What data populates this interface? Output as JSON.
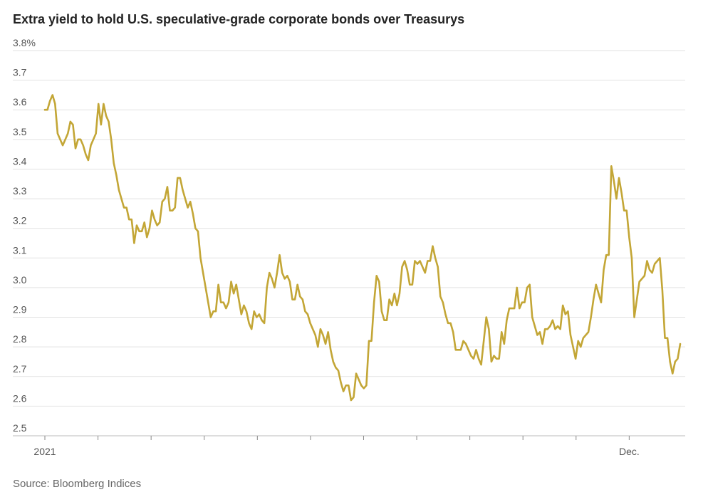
{
  "chart_data": {
    "type": "line",
    "title": "Extra yield to hold U.S. speculative-grade corporate bonds over Treasurys",
    "source": "Source: Bloomberg Indices",
    "color": "#c3a636",
    "grid": true,
    "ylim": [
      2.5,
      3.8
    ],
    "yticks": [
      2.5,
      2.6,
      2.7,
      2.8,
      2.9,
      {
        "value": 3,
        "label": "3.0"
      },
      3.1,
      3.2,
      3.3,
      3.4,
      3.5,
      3.6,
      3.7,
      {
        "value": 3.8,
        "label": "3.8%"
      }
    ],
    "categories": [
      "2021",
      null,
      null,
      null,
      null,
      null,
      null,
      null,
      null,
      null,
      null,
      null,
      null,
      null,
      null,
      null,
      null,
      null,
      null,
      null,
      null,
      null,
      null,
      null,
      null,
      null,
      null,
      null,
      null,
      null,
      null,
      null,
      null,
      null,
      null,
      null,
      null,
      null,
      null,
      null,
      null,
      null,
      null,
      null,
      null,
      null,
      null,
      null,
      null,
      null,
      null,
      null,
      null,
      null,
      null,
      null,
      null,
      null,
      null,
      null,
      null,
      null,
      null,
      null,
      null,
      null,
      null,
      null,
      null,
      null,
      null,
      null,
      null,
      null,
      null,
      null,
      null,
      null,
      null,
      null,
      null,
      null,
      null,
      null,
      null,
      null,
      null,
      null,
      null,
      null,
      null,
      null,
      null,
      null,
      null,
      null,
      null,
      null,
      null,
      null,
      null,
      null,
      null,
      null,
      null,
      null,
      null,
      null,
      null,
      null,
      null,
      null,
      null,
      null,
      null,
      null,
      null,
      null,
      null,
      null,
      null,
      null,
      null,
      null,
      null,
      null,
      null,
      null,
      null,
      null,
      null,
      null,
      null,
      null,
      null,
      null,
      null,
      null,
      null,
      null,
      null,
      null,
      null,
      null,
      null,
      null,
      null,
      null,
      null,
      null,
      null,
      null,
      null,
      null,
      null,
      null,
      null,
      null,
      null,
      null,
      null,
      null,
      null,
      null,
      null,
      null,
      null,
      null,
      null,
      null,
      null,
      null,
      null,
      null,
      null,
      null,
      null,
      null,
      null,
      null,
      null,
      null,
      null,
      null,
      null,
      null,
      null,
      null,
      null,
      null,
      null,
      null,
      null,
      null,
      null,
      null,
      null,
      null,
      null,
      null,
      null,
      null,
      null,
      null,
      null,
      null,
      null,
      null,
      null,
      null,
      null,
      null,
      null,
      null,
      null,
      null,
      null,
      null,
      null,
      null,
      null,
      null,
      null,
      null,
      null,
      null,
      null,
      null,
      null,
      "Dec.",
      null,
      null,
      null,
      null,
      null,
      null,
      null,
      null,
      null,
      null,
      null,
      null,
      null,
      null,
      null,
      null,
      null,
      null,
      null,
      null
    ],
    "values": [
      3.6,
      3.6,
      3.63,
      3.65,
      3.62,
      3.52,
      3.5,
      3.48,
      3.5,
      3.52,
      3.56,
      3.55,
      3.47,
      3.5,
      3.5,
      3.48,
      3.45,
      3.43,
      3.48,
      3.5,
      3.52,
      3.62,
      3.55,
      3.62,
      3.58,
      3.56,
      3.5,
      3.42,
      3.38,
      3.33,
      3.3,
      3.27,
      3.27,
      3.23,
      3.23,
      3.15,
      3.21,
      3.19,
      3.19,
      3.22,
      3.17,
      3.2,
      3.26,
      3.23,
      3.21,
      3.22,
      3.29,
      3.3,
      3.34,
      3.26,
      3.26,
      3.27,
      3.37,
      3.37,
      3.33,
      3.3,
      3.27,
      3.29,
      3.25,
      3.2,
      3.19,
      3.1,
      3.05,
      3.0,
      2.95,
      2.9,
      2.92,
      2.92,
      3.01,
      2.95,
      2.95,
      2.93,
      2.95,
      3.02,
      2.98,
      3.01,
      2.96,
      2.91,
      2.94,
      2.92,
      2.88,
      2.86,
      2.92,
      2.9,
      2.91,
      2.89,
      2.88,
      3.0,
      3.05,
      3.03,
      3.0,
      3.05,
      3.11,
      3.05,
      3.03,
      3.04,
      3.02,
      2.96,
      2.96,
      3.01,
      2.97,
      2.96,
      2.92,
      2.91,
      2.88,
      2.86,
      2.84,
      2.8,
      2.86,
      2.84,
      2.81,
      2.85,
      2.79,
      2.75,
      2.73,
      2.72,
      2.68,
      2.65,
      2.67,
      2.67,
      2.62,
      2.63,
      2.71,
      2.69,
      2.67,
      2.66,
      2.67,
      2.82,
      2.82,
      2.95,
      3.04,
      3.02,
      2.92,
      2.89,
      2.89,
      2.96,
      2.94,
      2.98,
      2.94,
      2.98,
      3.07,
      3.09,
      3.06,
      3.01,
      3.01,
      3.09,
      3.08,
      3.09,
      3.07,
      3.05,
      3.09,
      3.09,
      3.14,
      3.1,
      3.07,
      2.97,
      2.95,
      2.91,
      2.88,
      2.88,
      2.85,
      2.79,
      2.79,
      2.79,
      2.82,
      2.81,
      2.79,
      2.77,
      2.76,
      2.79,
      2.76,
      2.74,
      2.82,
      2.9,
      2.86,
      2.75,
      2.77,
      2.76,
      2.76,
      2.85,
      2.81,
      2.89,
      2.93,
      2.93,
      2.93,
      3.0,
      2.93,
      2.95,
      2.95,
      3.0,
      3.01,
      2.9,
      2.87,
      2.84,
      2.85,
      2.81,
      2.86,
      2.86,
      2.87,
      2.89,
      2.86,
      2.87,
      2.86,
      2.94,
      2.91,
      2.92,
      2.84,
      2.8,
      2.76,
      2.82,
      2.8,
      2.83,
      2.84,
      2.85,
      2.9,
      2.96,
      3.01,
      2.98,
      2.95,
      3.06,
      3.11,
      3.11,
      3.41,
      3.36,
      3.3,
      3.37,
      3.32,
      3.26,
      3.26,
      3.17,
      3.1,
      2.9,
      2.96,
      3.02,
      3.03,
      3.04,
      3.09,
      3.06,
      3.05,
      3.08,
      3.09,
      3.1,
      2.99,
      2.83,
      2.83,
      2.75,
      2.71,
      2.75,
      2.76,
      2.81
    ]
  }
}
